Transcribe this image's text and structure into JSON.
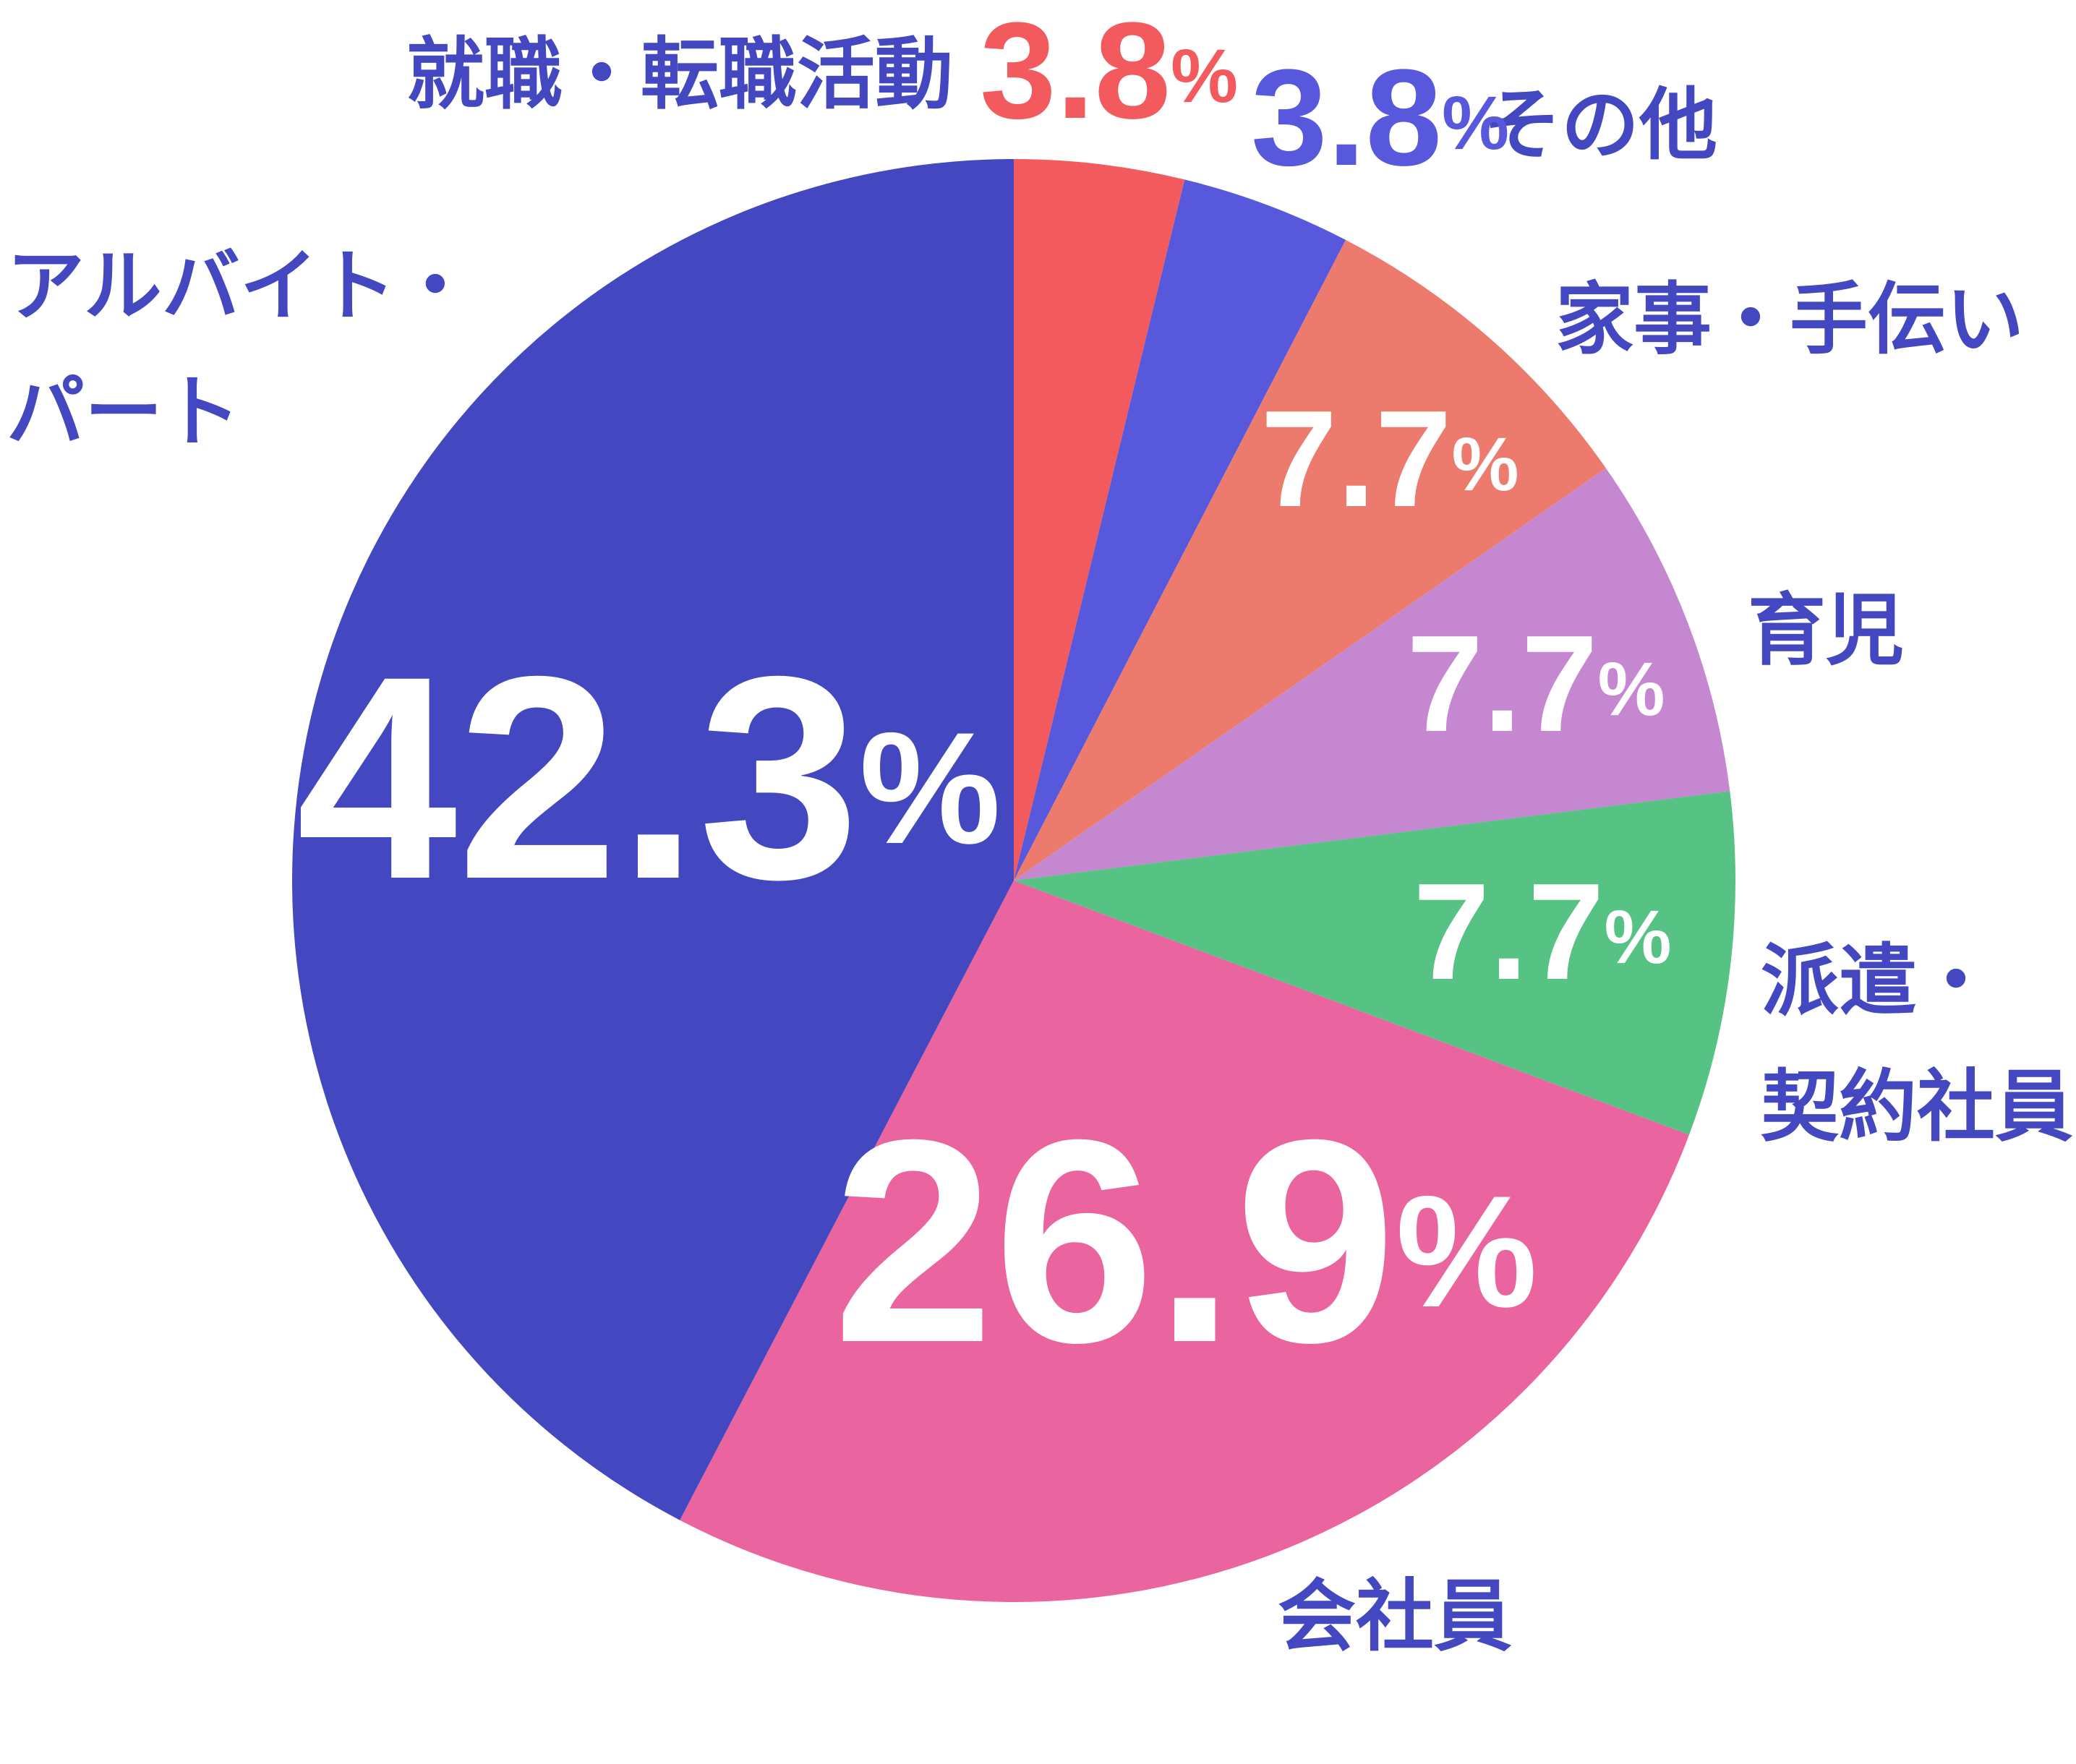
{
  "chart_data": {
    "type": "pie",
    "categories": [
      "就職・転職活動",
      "その他",
      "家事・手伝い",
      "育児",
      "派遣・\n契約社員",
      "会社員",
      "アルバイト・\nパート"
    ],
    "values": [
      3.8,
      3.8,
      7.7,
      7.7,
      7.7,
      26.9,
      42.3
    ],
    "value_labels": [
      "3.8%",
      "3.8%",
      "7.7%",
      "7.7%",
      "7.7%",
      "26.9%",
      "42.3%"
    ],
    "colors": [
      "#f25a5e",
      "#5858dc",
      "#ec7b6d",
      "#c587d0",
      "#56c284",
      "#ea65a0",
      "#4348c0"
    ],
    "label_color": "#4348c0"
  }
}
